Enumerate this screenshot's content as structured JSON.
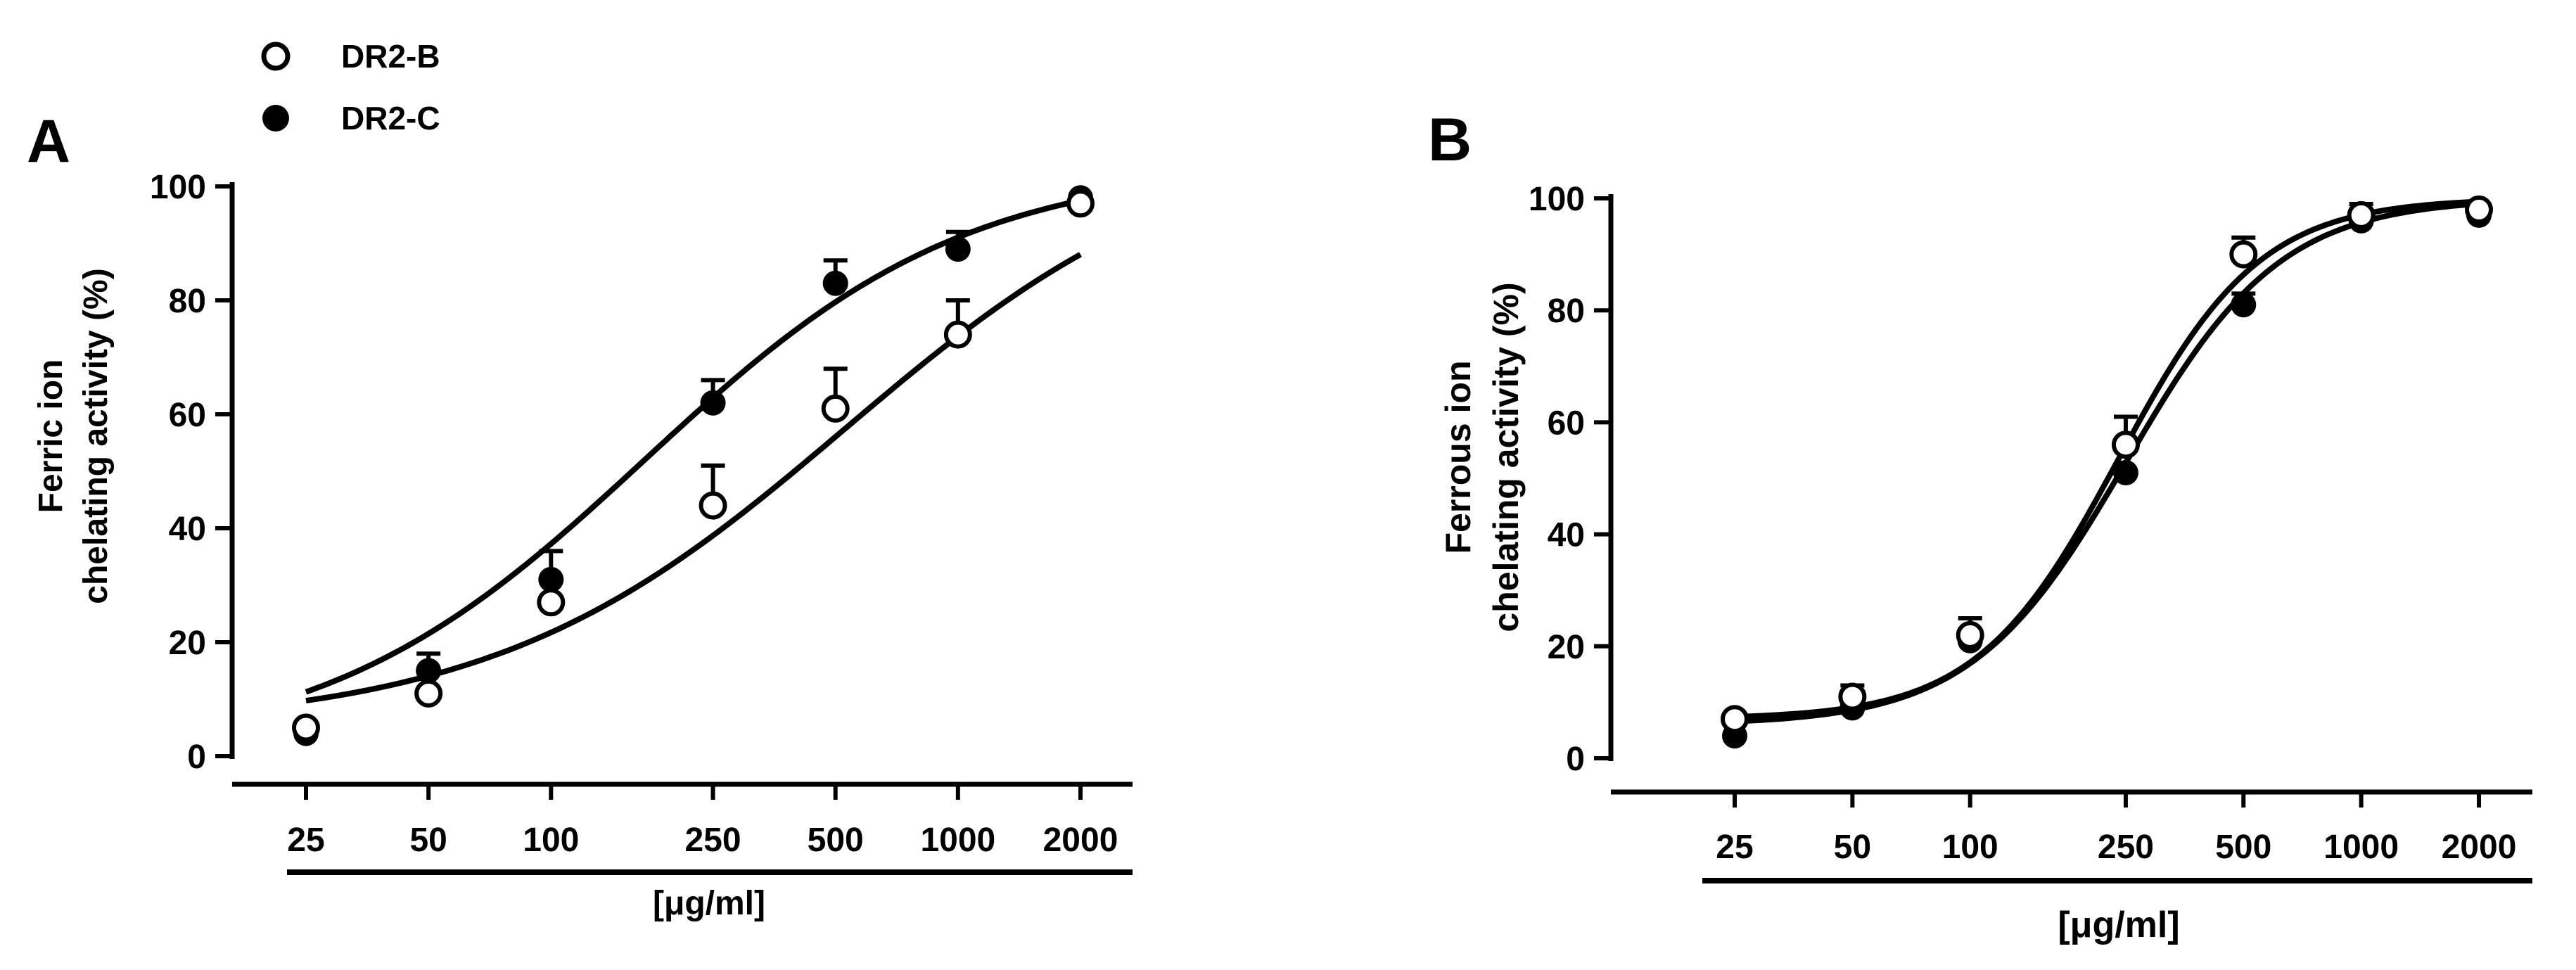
{
  "legend": {
    "items": [
      {
        "label": "DR2-B",
        "marker": "open-circle"
      },
      {
        "label": "DR2-C",
        "marker": "filled-circle"
      }
    ]
  },
  "colors": {
    "ink": "#000000",
    "background": "#ffffff"
  },
  "chart_data": [
    {
      "panel": "A",
      "type": "scatter",
      "fit": "sigmoidal dose-response curve",
      "x_scale": "log",
      "xlabel": "[μg/ml]",
      "ylabel_lines": [
        "Ferric ion",
        "chelating activity (%)"
      ],
      "ylim": [
        0,
        100
      ],
      "y_ticks": [
        0,
        20,
        40,
        60,
        80,
        100
      ],
      "x_ticks": [
        25,
        50,
        100,
        250,
        500,
        1000,
        2000
      ],
      "x_tick_labels": [
        "25",
        "50",
        "100",
        "250",
        "500",
        "1000",
        "2000"
      ],
      "series": [
        {
          "name": "DR2-B",
          "marker": "open",
          "x": [
            25,
            50,
            100,
            250,
            500,
            1000,
            2000
          ],
          "y": [
            5,
            11,
            27,
            44,
            61,
            74,
            97
          ],
          "err": [
            0,
            0,
            0,
            7,
            7,
            6,
            0
          ],
          "curve": {
            "bottom": 5,
            "top": 110,
            "log_ec50": 2.723,
            "hill": 1.0
          }
        },
        {
          "name": "DR2-C",
          "marker": "filled",
          "x": [
            25,
            50,
            100,
            250,
            500,
            1000,
            2000
          ],
          "y": [
            4,
            15,
            31,
            62,
            83,
            89,
            98
          ],
          "err": [
            0,
            3,
            5,
            4,
            4,
            3,
            0
          ],
          "curve": {
            "bottom": 0,
            "top": 104,
            "log_ec50": 2.23,
            "hill": 1.1
          }
        }
      ]
    },
    {
      "panel": "B",
      "type": "scatter",
      "fit": "sigmoidal dose-response curve",
      "x_scale": "log",
      "xlabel": "[μg/ml]",
      "ylabel_lines": [
        "Ferrous ion",
        "chelating activity (%)"
      ],
      "ylim": [
        0,
        100
      ],
      "y_ticks": [
        0,
        20,
        40,
        60,
        80,
        100
      ],
      "x_ticks": [
        25,
        50,
        100,
        250,
        500,
        1000,
        2000
      ],
      "x_tick_labels": [
        "25",
        "50",
        "100",
        "250",
        "500",
        "1000",
        "2000"
      ],
      "series": [
        {
          "name": "DR2-B",
          "marker": "open",
          "x": [
            25,
            50,
            100,
            250,
            500,
            1000,
            2000
          ],
          "y": [
            7,
            11,
            22,
            56,
            90,
            97,
            98
          ],
          "err": [
            0,
            2,
            3,
            5,
            3,
            2,
            0
          ],
          "curve": {
            "bottom": 7,
            "top": 100,
            "log_ec50": 2.38,
            "hill": 2.4
          }
        },
        {
          "name": "DR2-C",
          "marker": "filled",
          "x": [
            25,
            50,
            100,
            250,
            500,
            1000,
            2000
          ],
          "y": [
            4,
            9,
            21,
            51,
            81,
            96,
            97
          ],
          "err": [
            0,
            0,
            0,
            0,
            2,
            2,
            0
          ],
          "curve": {
            "bottom": 6,
            "top": 100,
            "log_ec50": 2.4,
            "hill": 2.2
          }
        }
      ]
    }
  ]
}
